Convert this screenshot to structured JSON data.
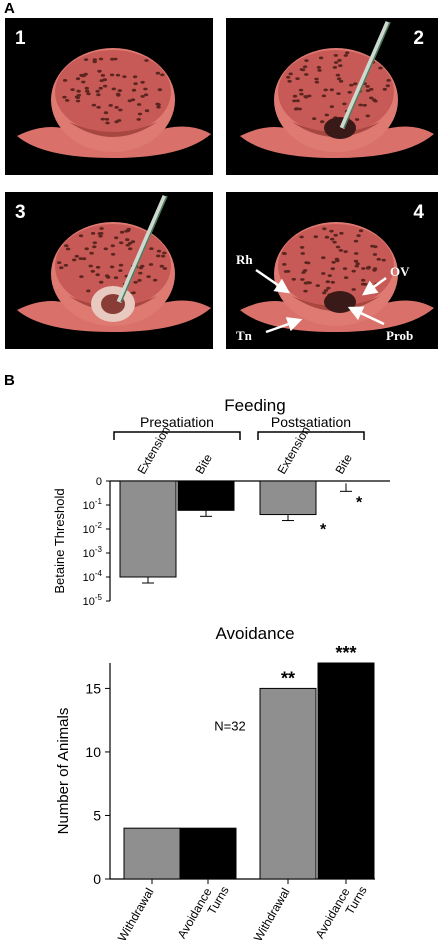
{
  "panel_a": {
    "letter": "A",
    "photos": [
      {
        "num": "1",
        "has_probe": false,
        "proboscis": "none"
      },
      {
        "num": "2",
        "has_probe": true,
        "proboscis": "small"
      },
      {
        "num": "3",
        "has_probe": true,
        "proboscis": "extended"
      },
      {
        "num": "4",
        "has_probe": false,
        "proboscis": "small"
      }
    ],
    "annotations": {
      "rh": "Rh",
      "ov": "OV",
      "tn": "Tn",
      "prob": "Prob"
    }
  },
  "panel_b": {
    "letter": "B"
  },
  "chart_data": [
    {
      "type": "bar",
      "title": "Feeding",
      "ylabel": "Betaine Threshold",
      "scale": "log",
      "y_ticks": [
        "0",
        "10-1",
        "10-2",
        "10-3",
        "10-4",
        "10-5"
      ],
      "groups": [
        "Presatiation",
        "Postsatiation"
      ],
      "categories": [
        "Extension",
        "Bite",
        "Extension",
        "Bite"
      ],
      "values": [
        "1e-4",
        "6e-2",
        "4e-2",
        "0.8"
      ],
      "colors": [
        "#8f8f8f",
        "#000000",
        "#8f8f8f",
        "#000000"
      ],
      "significance": [
        "",
        "",
        "*",
        "*"
      ]
    },
    {
      "type": "bar",
      "title": "Avoidance",
      "ylabel": "Number of Animals",
      "ylim": [
        0,
        17
      ],
      "y_ticks": [
        0,
        5,
        10,
        15
      ],
      "annotation": "N=32",
      "categories": [
        "Withdrawal",
        "Avoidance Turns",
        "Withdrawal",
        "Avoidance Turns"
      ],
      "values": [
        4,
        4,
        15,
        17
      ],
      "colors": [
        "#8f8f8f",
        "#000000",
        "#8f8f8f",
        "#000000"
      ],
      "significance": [
        "",
        "",
        "**",
        "***"
      ]
    }
  ]
}
